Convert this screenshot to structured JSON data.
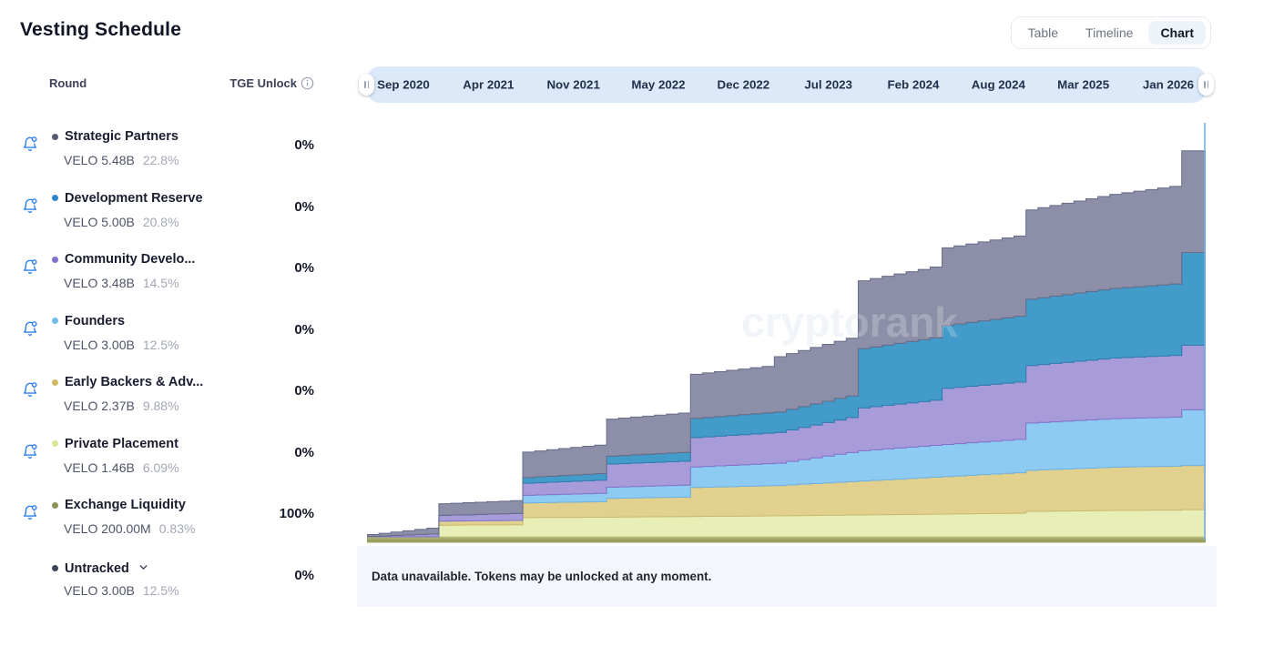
{
  "page": {
    "title": "Vesting Schedule"
  },
  "tabs": {
    "items": [
      {
        "label": "Table",
        "active": false
      },
      {
        "label": "Timeline",
        "active": false
      },
      {
        "label": "Chart",
        "active": true
      }
    ]
  },
  "table": {
    "round_header": "Round",
    "tge_header": "TGE Unlock",
    "info_icon": "info-circle",
    "rows": [
      {
        "name": "Strategic Partners",
        "amount": "VELO 5.48B",
        "supply_pct": "22.8%",
        "tge": "0%",
        "dot_color": "#565b72",
        "bell": true,
        "chevron": false
      },
      {
        "name": "Development Reserve",
        "amount": "VELO 5.00B",
        "supply_pct": "20.8%",
        "tge": "0%",
        "dot_color": "#2e86c8",
        "bell": true,
        "chevron": false
      },
      {
        "name": "Community Develo...",
        "amount": "VELO 3.48B",
        "supply_pct": "14.5%",
        "tge": "0%",
        "dot_color": "#8071cf",
        "bell": true,
        "chevron": false
      },
      {
        "name": "Founders",
        "amount": "VELO 3.00B",
        "supply_pct": "12.5%",
        "tge": "0%",
        "dot_color": "#72bceb",
        "bell": true,
        "chevron": false
      },
      {
        "name": "Early Backers & Adv...",
        "amount": "VELO 2.37B",
        "supply_pct": "9.88%",
        "tge": "0%",
        "dot_color": "#d2b85e",
        "bell": true,
        "chevron": false
      },
      {
        "name": "Private Placement",
        "amount": "VELO 1.46B",
        "supply_pct": "6.09%",
        "tge": "0%",
        "dot_color": "#dbe697",
        "bell": true,
        "chevron": false
      },
      {
        "name": "Exchange Liquidity",
        "amount": "VELO 200.00M",
        "supply_pct": "0.83%",
        "tge": "100%",
        "dot_color": "#8e9456",
        "bell": true,
        "chevron": false
      },
      {
        "name": "Untracked",
        "amount": "VELO 3.00B",
        "supply_pct": "12.5%",
        "tge": "0%",
        "dot_color": "#3f4459",
        "bell": false,
        "chevron": true
      }
    ]
  },
  "timeline": {
    "ticks": [
      "Sep 2020",
      "Apr 2021",
      "Nov 2021",
      "May 2022",
      "Dec 2022",
      "Jul 2023",
      "Feb 2024",
      "Aug 2024",
      "Mar 2025",
      "Jan 2026"
    ]
  },
  "watermark": "cryptorank",
  "footer": {
    "message": "Data unavailable. Tokens may be unlocked at any moment."
  },
  "chart_data": {
    "type": "area",
    "subtype": "stacked-step-area",
    "unit": "% of total supply unlocked",
    "x_start": "Jun 2020",
    "x_end": "Apr 2026",
    "months": 70,
    "ylim": [
      0,
      100
    ],
    "grid": false,
    "legend_position": "left-sidebar",
    "x_tick_labels": [
      "Sep 2020",
      "Apr 2021",
      "Nov 2021",
      "May 2022",
      "Dec 2022",
      "Jul 2023",
      "Feb 2024",
      "Aug 2024",
      "Mar 2025",
      "Jan 2026"
    ],
    "note": "keyframes are [monthIndex,value] pairs; duplicate months encode cliff jumps; values step monthly between keyframes; series listed bottom-to-top in stack order",
    "series": [
      {
        "name": "Exchange Liquidity",
        "total_percent": 0.83,
        "color": "#a9ac70",
        "edge": "#8d9253",
        "keyframes": [
          [
            0,
            0.83
          ],
          [
            70,
            0.83
          ]
        ]
      },
      {
        "name": "Private Placement",
        "total_percent": 6.09,
        "color": "#e7eeb6",
        "edge": "#cdd88e",
        "keyframes": [
          [
            0,
            0
          ],
          [
            6,
            0
          ],
          [
            6,
            2.6
          ],
          [
            13,
            2.7
          ],
          [
            13,
            4.3
          ],
          [
            20,
            4.4
          ],
          [
            34,
            4.7
          ],
          [
            48,
            5.1
          ],
          [
            55,
            5.3
          ],
          [
            55,
            5.7
          ],
          [
            62,
            5.9
          ],
          [
            68,
            6.0
          ],
          [
            68,
            6.09
          ],
          [
            70,
            6.09
          ]
        ]
      },
      {
        "name": "Early Backers & Advisors",
        "total_percent": 9.88,
        "color": "#e2d18e",
        "edge": "#c9b96f",
        "keyframes": [
          [
            0,
            0
          ],
          [
            6,
            0
          ],
          [
            6,
            0.9
          ],
          [
            13,
            1.0
          ],
          [
            13,
            3.3
          ],
          [
            20,
            3.5
          ],
          [
            20,
            4.2
          ],
          [
            27,
            4.4
          ],
          [
            27,
            6.5
          ],
          [
            34,
            6.8
          ],
          [
            41,
            7.6
          ],
          [
            48,
            8.4
          ],
          [
            55,
            9.2
          ],
          [
            62,
            9.7
          ],
          [
            68,
            9.88
          ],
          [
            70,
            9.88
          ]
        ]
      },
      {
        "name": "Founders",
        "total_percent": 12.5,
        "color": "#8ecbf2",
        "edge": "#6cb2e2",
        "keyframes": [
          [
            0,
            0
          ],
          [
            13,
            0
          ],
          [
            13,
            1.7
          ],
          [
            20,
            1.9
          ],
          [
            20,
            2.5
          ],
          [
            27,
            2.7
          ],
          [
            27,
            4.6
          ],
          [
            34,
            5.0
          ],
          [
            41,
            6.8
          ],
          [
            48,
            7.2
          ],
          [
            55,
            7.5
          ],
          [
            55,
            10.6
          ],
          [
            62,
            10.9
          ],
          [
            68,
            11.0
          ],
          [
            68,
            12.5
          ],
          [
            70,
            12.5
          ]
        ]
      },
      {
        "name": "Community Development",
        "total_percent": 14.5,
        "color": "#a79bd9",
        "edge": "#8372cb",
        "keyframes": [
          [
            0,
            0.1
          ],
          [
            6,
            0.7
          ],
          [
            6,
            1.3
          ],
          [
            13,
            1.6
          ],
          [
            13,
            2.7
          ],
          [
            20,
            3.0
          ],
          [
            20,
            5.2
          ],
          [
            27,
            5.4
          ],
          [
            27,
            6.6
          ],
          [
            34,
            6.9
          ],
          [
            41,
            8.0
          ],
          [
            41,
            9.6
          ],
          [
            48,
            10.2
          ],
          [
            48,
            12.6
          ],
          [
            55,
            12.9
          ],
          [
            62,
            13.6
          ],
          [
            68,
            13.9
          ],
          [
            68,
            14.5
          ],
          [
            70,
            14.5
          ]
        ]
      },
      {
        "name": "Development Reserve",
        "total_percent": 20.8,
        "color": "#429bc9",
        "edge": "#2c7cad",
        "keyframes": [
          [
            0,
            0
          ],
          [
            13,
            0
          ],
          [
            13,
            1.3
          ],
          [
            20,
            1.5
          ],
          [
            20,
            1.8
          ],
          [
            27,
            2.0
          ],
          [
            27,
            4.3
          ],
          [
            34,
            4.6
          ],
          [
            41,
            4.9
          ],
          [
            41,
            13.3
          ],
          [
            48,
            14.1
          ],
          [
            55,
            14.9
          ],
          [
            62,
            15.6
          ],
          [
            68,
            16.1
          ],
          [
            68,
            20.8
          ],
          [
            70,
            20.8
          ]
        ]
      },
      {
        "name": "Strategic Partners",
        "total_percent": 22.8,
        "color": "#8c8fa7",
        "edge": "#676b88",
        "keyframes": [
          [
            0,
            0.4
          ],
          [
            6,
            1.5
          ],
          [
            6,
            2.6
          ],
          [
            13,
            2.9
          ],
          [
            13,
            5.7
          ],
          [
            20,
            6.5
          ],
          [
            20,
            8.3
          ],
          [
            27,
            8.9
          ],
          [
            27,
            9.9
          ],
          [
            34,
            10.5
          ],
          [
            34,
            12.4
          ],
          [
            41,
            13.0
          ],
          [
            41,
            15.2
          ],
          [
            48,
            16.0
          ],
          [
            48,
            17.4
          ],
          [
            55,
            18.1
          ],
          [
            55,
            20.0
          ],
          [
            62,
            21.1
          ],
          [
            67,
            21.9
          ],
          [
            68,
            22.8
          ],
          [
            70,
            22.8
          ]
        ]
      }
    ],
    "today_line_color": "#76b1e2"
  }
}
